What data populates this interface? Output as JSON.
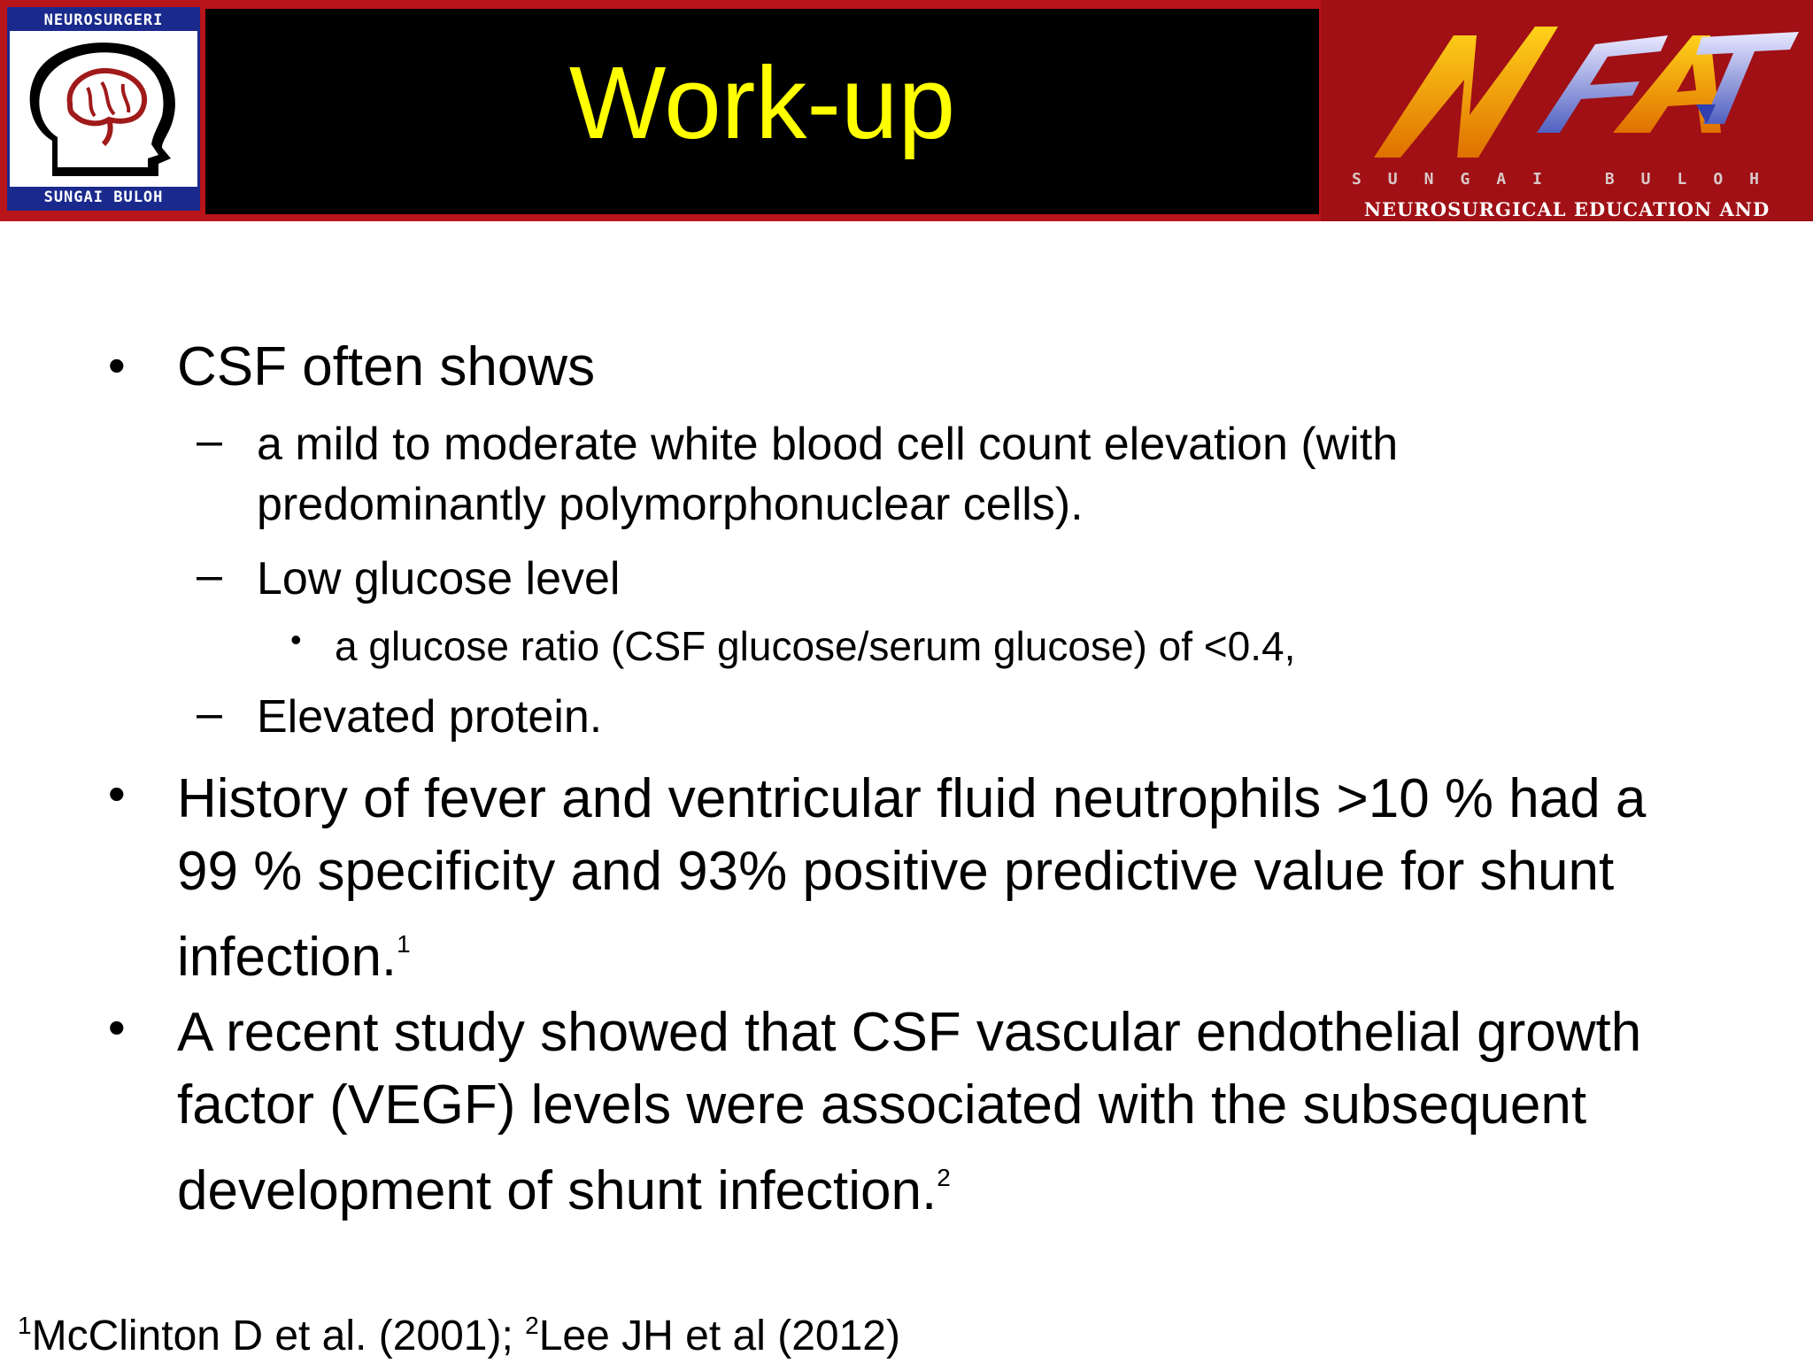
{
  "header": {
    "title": "Work-up",
    "logo_left": {
      "top_text": "NEUROSURGERI",
      "bottom_text": "SUNGAI BULOH",
      "icon": "brain-head-icon"
    },
    "logo_right": {
      "mark": "NEAT",
      "sub_text": "SUNGAI BULOH",
      "tagline": "NEUROSURGICAL EDUCATION AND TRAINING"
    }
  },
  "bullets": [
    {
      "text": "CSF often shows",
      "subs": [
        {
          "text": "a mild to moderate white blood cell count elevation (with predominantly polymorphonuclear cells)."
        },
        {
          "text": "Low glucose level",
          "subs": [
            {
              "text": "a glucose ratio (CSF glucose/serum glucose) of <0.4,"
            }
          ]
        },
        {
          "text": "Elevated protein."
        }
      ]
    },
    {
      "text": "History of fever and ventricular fluid neutrophils >10 % had a 99 % specificity and 93% positive predictive value for shunt infection.",
      "sup": "1"
    },
    {
      "text": "A recent study showed that CSF vascular endothelial growth factor (VEGF) levels were associated with the subsequent development of shunt infection.",
      "sup": "2"
    }
  ],
  "footnote": {
    "sup1": "1",
    "ref1": "McClinton D et al. (2001); ",
    "sup2": "2",
    "ref2": "Lee JH et al (2012)"
  },
  "colors": {
    "header_red": "#b81419",
    "title_band": "#000000",
    "title_text": "#ffff00"
  }
}
